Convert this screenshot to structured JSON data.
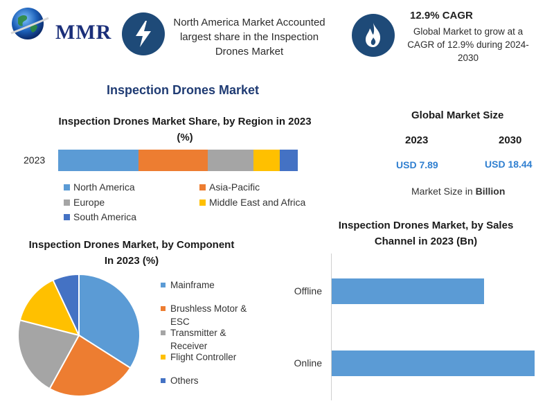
{
  "brand": {
    "logo_text": "MMR"
  },
  "highlights": {
    "north_america": "North America Market Accounted largest share in the Inspection Drones Market",
    "cagr_title": "12.9% CAGR",
    "cagr_text": "Global Market to grow at a CAGR of 12.9% during 2024-2030"
  },
  "page_title": "Inspection Drones Market",
  "global_market": {
    "title": "Global Market Size",
    "year_a": "2023",
    "year_b": "2030",
    "value_a": "USD 7.89",
    "value_b": "USD 18.44",
    "unit_prefix": "Market Size in ",
    "unit_bold": "Billion"
  },
  "colors": {
    "blue": "#5b9bd5",
    "orange": "#ed7d31",
    "gray": "#a5a5a5",
    "yellow": "#ffc000",
    "dark_blue": "#4472c4",
    "usd": "#2f7fd0",
    "title": "#1f3b73"
  },
  "chart_data": [
    {
      "type": "bar",
      "orientation": "horizontal-stacked",
      "title": "Inspection Drones Market Share, by Region in 2023 (%)",
      "categories": [
        "2023"
      ],
      "series": [
        {
          "name": "North America",
          "values": [
            33.5
          ],
          "color": "#5b9bd5"
        },
        {
          "name": "Asia-Pacific",
          "values": [
            29
          ],
          "color": "#ed7d31"
        },
        {
          "name": "Europe",
          "values": [
            19
          ],
          "color": "#a5a5a5"
        },
        {
          "name": "Middle East and Africa",
          "values": [
            11
          ],
          "color": "#ffc000"
        },
        {
          "name": "South America",
          "values": [
            7.5
          ],
          "color": "#4472c4"
        }
      ],
      "legend": "bottom"
    },
    {
      "type": "pie",
      "title": "Inspection Drones Market, by Component In 2023 (%)",
      "labels": [
        "Mainframe",
        "Brushless Motor & ESC",
        "Transmitter & Receiver",
        "Flight Controller",
        "Others"
      ],
      "values": [
        34,
        24,
        21,
        14,
        7
      ],
      "colors": [
        "#5b9bd5",
        "#ed7d31",
        "#a5a5a5",
        "#ffc000",
        "#4472c4"
      ],
      "legend": "right"
    },
    {
      "type": "bar",
      "orientation": "horizontal",
      "title": "Inspection Drones Market, by Sales Channel in 2023 (Bn)",
      "categories": [
        "Offline",
        "Online"
      ],
      "values": [
        3.3,
        4.4
      ],
      "xlim": [
        0,
        4.5
      ],
      "color": "#5b9bd5"
    }
  ]
}
